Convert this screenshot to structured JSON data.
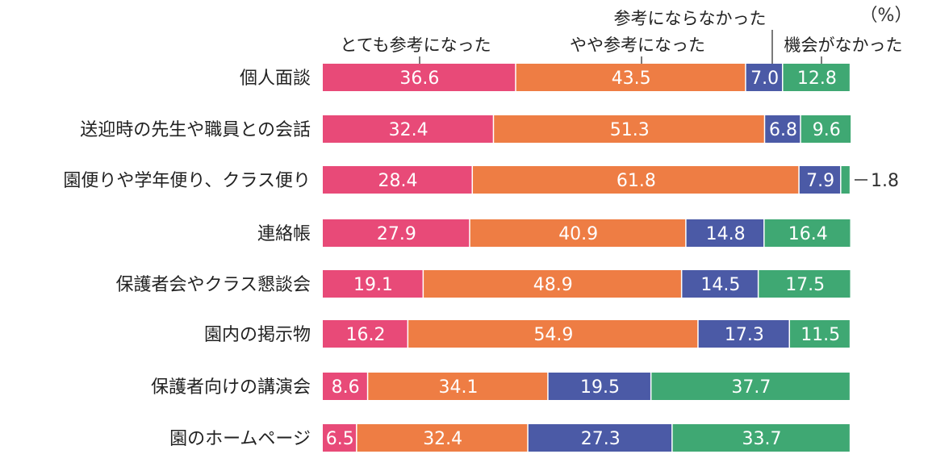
{
  "chart_data": {
    "type": "bar",
    "orientation": "horizontal",
    "stacked": true,
    "unit_label": "（%）",
    "categories": [
      "個人面談",
      "送迎時の先生や職員との会話",
      "園便りや学年便り、クラス便り",
      "連絡帳",
      "保護者会やクラス懇談会",
      "園内の掲示物",
      "保護者向けの講演会",
      "園のホームページ"
    ],
    "series": [
      {
        "name": "とても参考になった",
        "color": "#e84a78",
        "values": [
          36.6,
          32.4,
          28.4,
          27.9,
          19.1,
          16.2,
          8.6,
          6.5
        ]
      },
      {
        "name": "やや参考になった",
        "color": "#ee7d44",
        "values": [
          43.5,
          51.3,
          61.8,
          40.9,
          48.9,
          54.9,
          34.1,
          32.4
        ]
      },
      {
        "name": "参考にならなかった",
        "color": "#4b5aa6",
        "values": [
          7.0,
          6.8,
          7.9,
          14.8,
          14.5,
          17.3,
          19.5,
          27.3
        ]
      },
      {
        "name": "機会がなかった",
        "color": "#3fa873",
        "values": [
          12.8,
          9.6,
          1.8,
          16.4,
          17.5,
          11.5,
          37.7,
          33.7
        ]
      }
    ],
    "value_labels": [
      [
        "36.6",
        "43.5",
        "7.0",
        "12.8"
      ],
      [
        "32.4",
        "51.3",
        "6.8",
        "9.6"
      ],
      [
        "28.4",
        "61.8",
        "7.9",
        "1.8"
      ],
      [
        "27.9",
        "40.9",
        "14.8",
        "16.4"
      ],
      [
        "19.1",
        "48.9",
        "14.5",
        "17.5"
      ],
      [
        "16.2",
        "54.9",
        "17.3",
        "11.5"
      ],
      [
        "8.6",
        "34.1",
        "19.5",
        "37.7"
      ],
      [
        "6.5",
        "32.4",
        "27.3",
        "33.7"
      ]
    ],
    "xlim": [
      0,
      100
    ],
    "grid": false,
    "legend": "top, leader lines to first bar"
  }
}
